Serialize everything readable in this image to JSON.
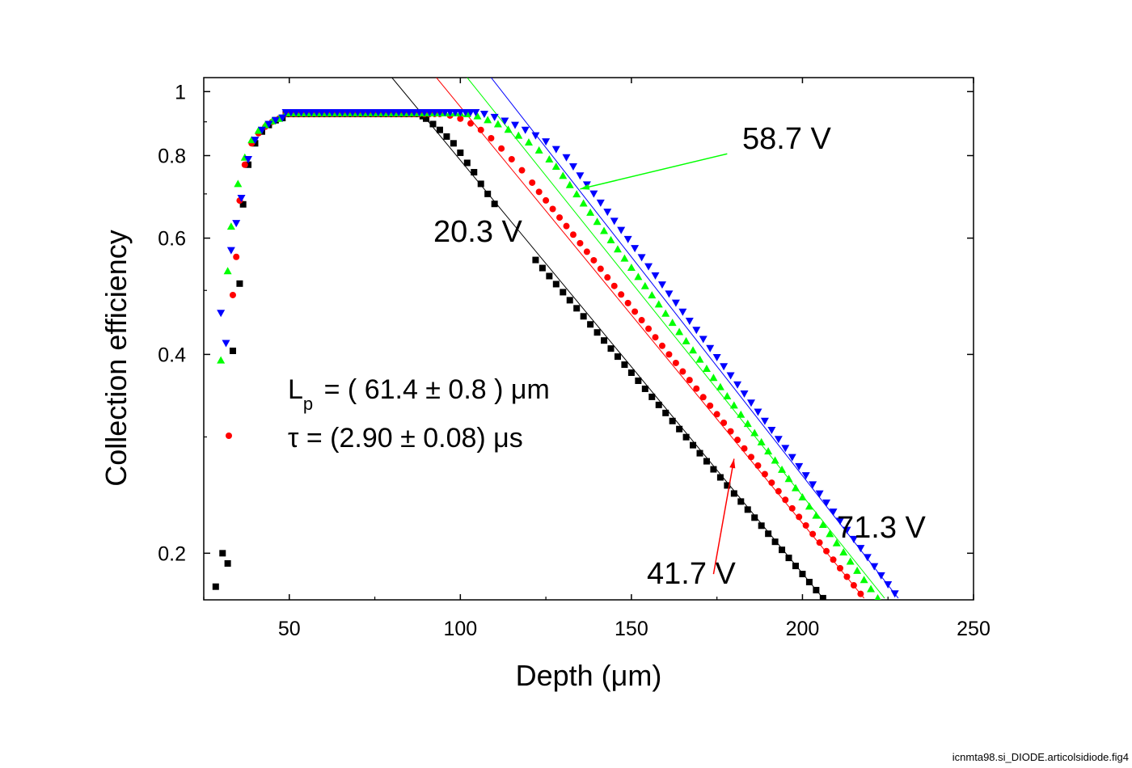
{
  "chart_data": {
    "type": "scatter",
    "xlabel": "Depth (μm)",
    "ylabel": "Collection efficiency",
    "xlim": [
      25,
      250
    ],
    "ylim": [
      0.17,
      1.05
    ],
    "yscale": "log",
    "x_ticks": [
      50,
      100,
      150,
      200,
      250
    ],
    "y_ticks": [
      0.2,
      0.4,
      0.6,
      0.8,
      1
    ],
    "y_tick_labels": [
      "0.2",
      "0.4",
      "0.6",
      "0.8",
      "1"
    ],
    "grid": false,
    "series": [
      {
        "name": "20.3 V",
        "color": "#000000",
        "marker": "square",
        "rise": [
          [
            28.5,
            0.178
          ],
          [
            30.5,
            0.2
          ],
          [
            32,
            0.193
          ],
          [
            33.5,
            0.405
          ],
          [
            35.5,
            0.512
          ],
          [
            36.5,
            0.675
          ],
          [
            38,
            0.775
          ],
          [
            40,
            0.835
          ],
          [
            42,
            0.87
          ],
          [
            44,
            0.89
          ],
          [
            46,
            0.905
          ],
          [
            48,
            0.912
          ]
        ],
        "plateau": {
          "start": 49,
          "end": 88,
          "step": 1.5,
          "y": 0.925
        },
        "knee": [
          [
            89,
            0.918
          ],
          [
            90,
            0.91
          ],
          [
            92,
            0.893
          ],
          [
            94,
            0.875
          ],
          [
            96,
            0.855
          ],
          [
            98,
            0.835
          ],
          [
            100,
            0.808
          ],
          [
            102,
            0.78
          ],
          [
            104,
            0.755
          ],
          [
            106,
            0.725
          ],
          [
            108,
            0.7
          ],
          [
            110,
            0.676
          ]
        ],
        "tail": {
          "x1": 122,
          "x2": 206,
          "y1": 0.556,
          "y2": 0.171,
          "step": 2
        },
        "fit": {
          "x1": 80,
          "x2": 206,
          "y1": 1.05,
          "y2": 0.171
        }
      },
      {
        "name": "41.7 V",
        "color": "#ff0000",
        "marker": "circle",
        "rise": [
          [
            33.5,
            0.492
          ],
          [
            34.5,
            0.562
          ],
          [
            35.5,
            0.684
          ],
          [
            37,
            0.775
          ],
          [
            39,
            0.835
          ],
          [
            41,
            0.865
          ],
          [
            43,
            0.885
          ],
          [
            45,
            0.9
          ],
          [
            47,
            0.91
          ]
        ],
        "plateau": {
          "start": 49,
          "end": 95,
          "step": 1.5,
          "y": 0.925
        },
        "knee": [
          [
            97,
            0.92
          ],
          [
            100,
            0.91
          ],
          [
            103,
            0.895
          ],
          [
            106,
            0.875
          ],
          [
            109,
            0.85
          ],
          [
            112,
            0.82
          ],
          [
            115,
            0.79
          ],
          [
            118,
            0.76
          ],
          [
            121,
            0.728
          ]
        ],
        "tail": {
          "x1": 123,
          "x2": 218,
          "y1": 0.705,
          "y2": 0.171,
          "step": 2
        },
        "fit": {
          "x1": 93,
          "x2": 218,
          "y1": 1.05,
          "y2": 0.171
        }
      },
      {
        "name": "58.7 V",
        "color": "#00ff00",
        "marker": "triangle-up",
        "rise": [
          [
            30,
            0.392
          ],
          [
            32,
            0.535
          ],
          [
            33,
            0.625
          ],
          [
            35,
            0.725
          ],
          [
            37,
            0.795
          ],
          [
            39,
            0.845
          ],
          [
            41,
            0.873
          ],
          [
            43,
            0.89
          ],
          [
            45,
            0.902
          ],
          [
            47,
            0.91
          ]
        ],
        "plateau": {
          "start": 49,
          "end": 100,
          "step": 1.5,
          "y": 0.928
        },
        "knee": [
          [
            102,
            0.925
          ],
          [
            105,
            0.918
          ],
          [
            108,
            0.906
          ],
          [
            111,
            0.893
          ],
          [
            114,
            0.876
          ],
          [
            117,
            0.858
          ],
          [
            120,
            0.838
          ],
          [
            123,
            0.815
          ],
          [
            126,
            0.79
          ]
        ],
        "tail": {
          "x1": 128,
          "x2": 222,
          "y1": 0.77,
          "y2": 0.171,
          "step": 2
        },
        "fit": {
          "x1": 102,
          "x2": 224,
          "y1": 1.05,
          "y2": 0.171
        }
      },
      {
        "name": "71.3 V",
        "color": "#0000ff",
        "marker": "triangle-down",
        "rise": [
          [
            30,
            0.462
          ],
          [
            31.5,
            0.416
          ],
          [
            33,
            0.575
          ],
          [
            34.5,
            0.632
          ],
          [
            36,
            0.69
          ],
          [
            38,
            0.79
          ],
          [
            40,
            0.845
          ],
          [
            42,
            0.875
          ],
          [
            44,
            0.893
          ],
          [
            46,
            0.905
          ],
          [
            48,
            0.913
          ]
        ],
        "plateau": {
          "start": 49,
          "end": 105,
          "step": 1.5,
          "y": 0.93
        },
        "knee": [
          [
            107,
            0.925
          ],
          [
            110,
            0.915
          ],
          [
            113,
            0.903
          ],
          [
            116,
            0.89
          ],
          [
            119,
            0.875
          ],
          [
            122,
            0.858
          ],
          [
            125,
            0.84
          ],
          [
            128,
            0.818
          ]
        ],
        "tail": {
          "x1": 131,
          "x2": 228,
          "y1": 0.795,
          "y2": 0.171,
          "step": 2
        },
        "fit": {
          "x1": 109,
          "x2": 228,
          "y1": 1.05,
          "y2": 0.171
        }
      }
    ],
    "annotations": [
      {
        "text": "58.7 V",
        "series": "58.7 V",
        "pointer": {
          "from": [
            178,
            0.805
          ],
          "to": [
            135,
            0.712
          ]
        },
        "pointer_color": "#00ff00"
      },
      {
        "text": "20.3 V",
        "series": "20.3 V"
      },
      {
        "text": "71.3 V",
        "series": "71.3 V"
      },
      {
        "text": "41.7 V",
        "series": "41.7 V",
        "pointer": {
          "from": [
            174,
            0.186
          ],
          "to": [
            180,
            0.278
          ]
        },
        "pointer_color": "#ff0000"
      }
    ],
    "legend": {
      "marker_color": "#ff0000",
      "line1_main": "L",
      "line1_sub": "p",
      "line1_rest": " = ( 61.4 ± 0.8 ) μm",
      "line2": "τ = (2.90 ± 0.08) μs"
    }
  },
  "footer": "icnmta98.si_DIODE.articolsidiode.fig4"
}
